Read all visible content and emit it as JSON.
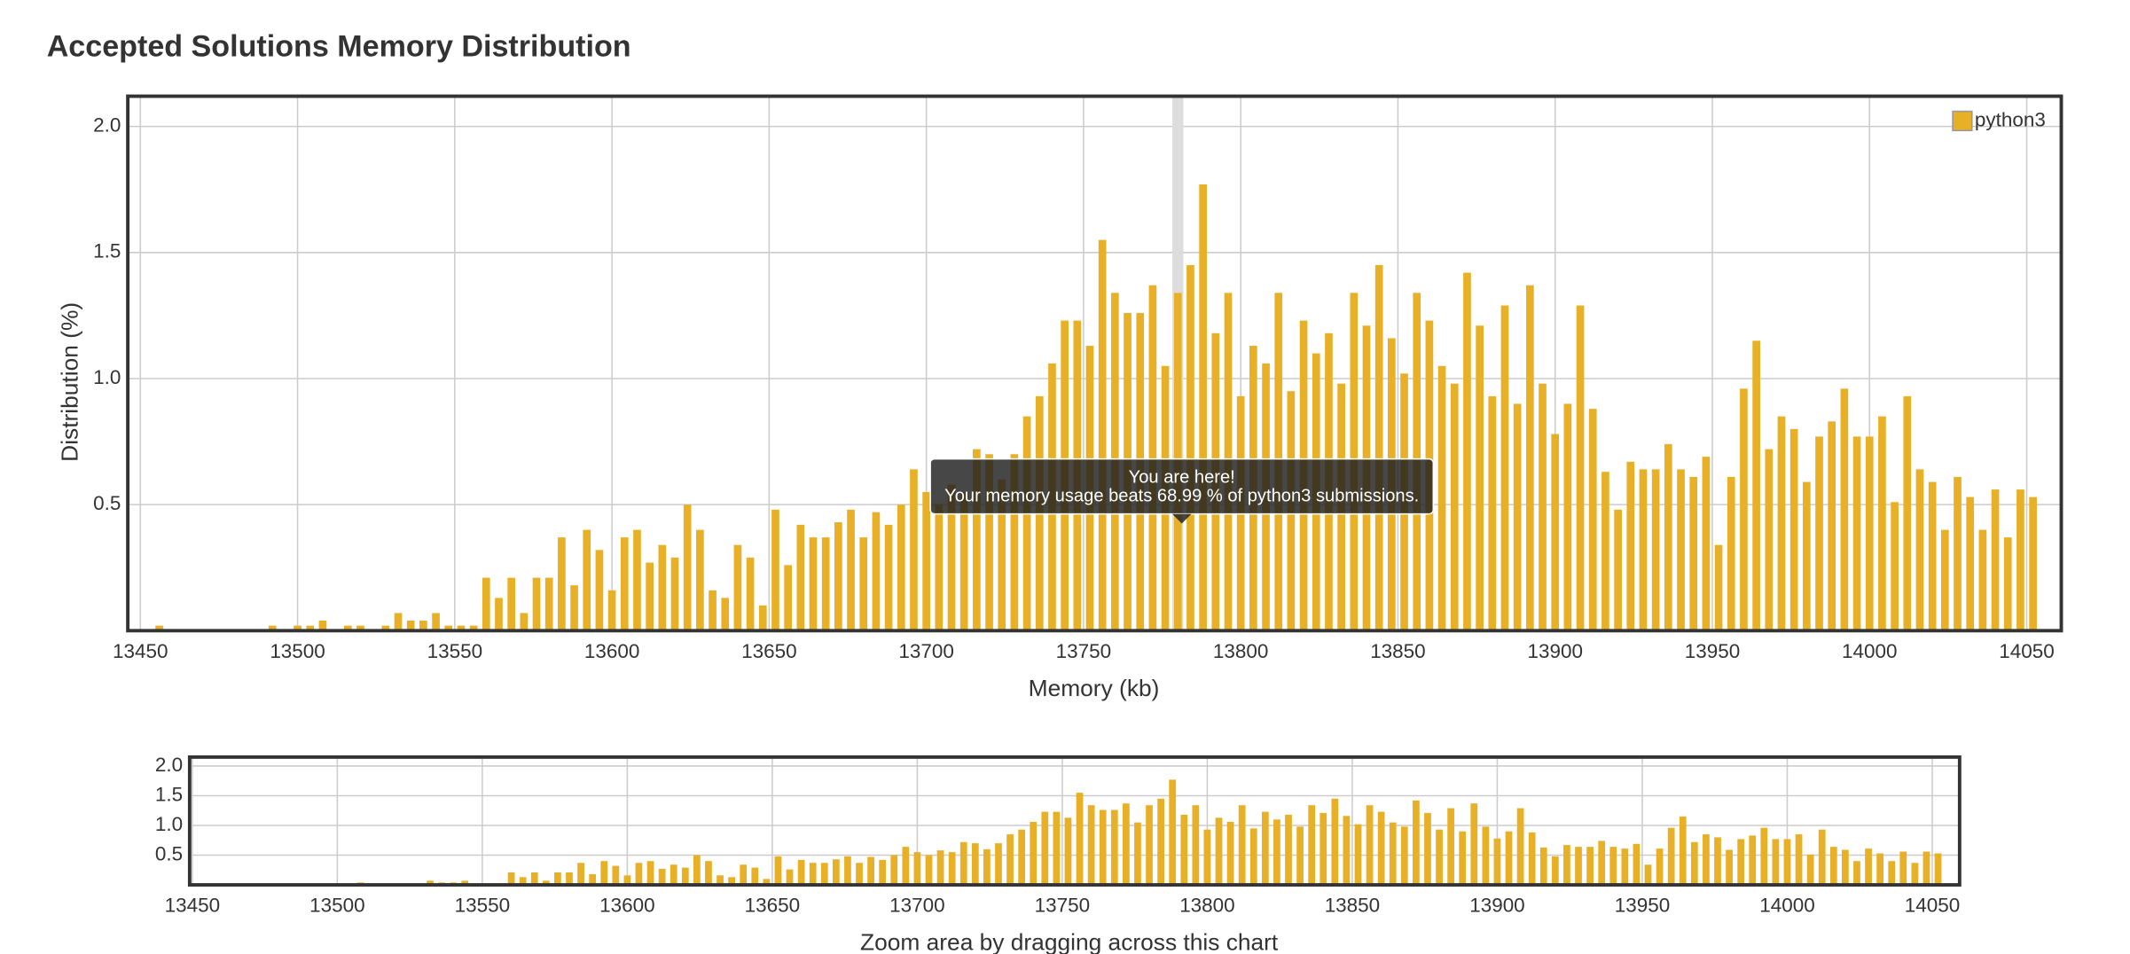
{
  "chart_data": {
    "type": "bar",
    "title": "Accepted Solutions Memory Distribution",
    "x_label": "Memory (kb)",
    "y_label": "Distribution (%)",
    "x": [
      13456,
      13460,
      13464,
      13468,
      13472,
      13476,
      13480,
      13484,
      13488,
      13492,
      13496,
      13500,
      13504,
      13508,
      13512,
      13516,
      13520,
      13524,
      13528,
      13532,
      13536,
      13540,
      13544,
      13548,
      13552,
      13556,
      13560,
      13564,
      13568,
      13572,
      13576,
      13580,
      13584,
      13588,
      13592,
      13596,
      13600,
      13604,
      13608,
      13612,
      13616,
      13620,
      13624,
      13628,
      13632,
      13636,
      13640,
      13644,
      13648,
      13652,
      13656,
      13660,
      13664,
      13668,
      13672,
      13676,
      13680,
      13684,
      13688,
      13692,
      13696,
      13700,
      13704,
      13708,
      13712,
      13716,
      13720,
      13724,
      13728,
      13732,
      13736,
      13740,
      13744,
      13748,
      13752,
      13756,
      13760,
      13764,
      13768,
      13772,
      13776,
      13780,
      13784,
      13788,
      13792,
      13796,
      13800,
      13804,
      13808,
      13812,
      13816,
      13820,
      13824,
      13828,
      13832,
      13836,
      13840,
      13844,
      13848,
      13852,
      13856,
      13860,
      13864,
      13868,
      13872,
      13876,
      13880,
      13884,
      13888,
      13892,
      13896,
      13900,
      13904,
      13908,
      13912,
      13916,
      13920,
      13924,
      13928,
      13932,
      13936,
      13940,
      13944,
      13948,
      13952,
      13956,
      13960,
      13964,
      13968,
      13972,
      13976,
      13980,
      13984,
      13988,
      13992,
      13996,
      14000,
      14004,
      14008,
      14012,
      14016,
      14020,
      14024,
      14028,
      14032,
      14036,
      14040,
      14044,
      14048,
      14052
    ],
    "series": [
      {
        "name": "python3",
        "color": "#e8b027",
        "values": [
          0.02,
          0,
          0,
          0,
          0,
          0,
          0,
          0,
          0,
          0.02,
          0,
          0.02,
          0.02,
          0.04,
          0,
          0.02,
          0.02,
          0,
          0.02,
          0.07,
          0.04,
          0.04,
          0.07,
          0.02,
          0.02,
          0.02,
          0.21,
          0.13,
          0.21,
          0.07,
          0.21,
          0.21,
          0.37,
          0.18,
          0.4,
          0.32,
          0.16,
          0.37,
          0.4,
          0.27,
          0.34,
          0.29,
          0.5,
          0.4,
          0.16,
          0.13,
          0.34,
          0.29,
          0.1,
          0.48,
          0.26,
          0.42,
          0.37,
          0.37,
          0.43,
          0.48,
          0.37,
          0.47,
          0.42,
          0.5,
          0.64,
          0.55,
          0.5,
          0.58,
          0.55,
          0.72,
          0.7,
          0.6,
          0.7,
          0.85,
          0.93,
          1.06,
          1.23,
          1.23,
          1.13,
          1.55,
          1.34,
          1.26,
          1.26,
          1.37,
          1.05,
          1.34,
          1.45,
          1.77,
          1.18,
          1.34,
          0.93,
          1.13,
          1.06,
          1.34,
          0.95,
          1.23,
          1.1,
          1.18,
          0.98,
          1.34,
          1.21,
          1.45,
          1.16,
          1.02,
          1.34,
          1.23,
          1.05,
          0.98,
          1.42,
          1.21,
          0.93,
          1.29,
          0.9,
          1.37,
          0.98,
          0.78,
          0.9,
          1.29,
          0.88,
          0.63,
          0.48,
          0.67,
          0.64,
          0.64,
          0.74,
          0.64,
          0.61,
          0.69,
          0.34,
          0.61,
          0.96,
          1.15,
          0.72,
          0.85,
          0.8,
          0.59,
          0.77,
          0.83,
          0.96,
          0.77,
          0.77,
          0.85,
          0.51,
          0.93,
          0.64,
          0.59,
          0.4,
          0.61,
          0.53,
          0.4,
          0.56,
          0.37,
          0.56,
          0.53
        ]
      }
    ],
    "xlim": [
      13446,
      14061
    ],
    "ylim": [
      0,
      2.12
    ],
    "xticks": [
      13450,
      13500,
      13550,
      13600,
      13650,
      13700,
      13750,
      13800,
      13850,
      13900,
      13950,
      14000,
      14050
    ],
    "yticks": [
      0.5,
      {
        "value": 1,
        "label": "1.0"
      },
      1.5,
      {
        "value": 2,
        "label": "2.0"
      }
    ],
    "grid": true,
    "legend": "top-right",
    "highlight_x": 13780,
    "tooltip": [
      "You are here!",
      "Your memory usage beats 68.99 % of python3 submissions."
    ],
    "navigator": {
      "label": "Zoom area by dragging across this chart",
      "ylim": [
        0,
        2.15
      ],
      "yticks": [
        0.5,
        {
          "value": 1,
          "label": "1.0"
        },
        1.5,
        {
          "value": 2,
          "label": "2.0"
        }
      ],
      "xticks": [
        13450,
        13500,
        13550,
        13600,
        13650,
        13700,
        13750,
        13800,
        13850,
        13900,
        13950,
        14000,
        14050
      ]
    }
  }
}
